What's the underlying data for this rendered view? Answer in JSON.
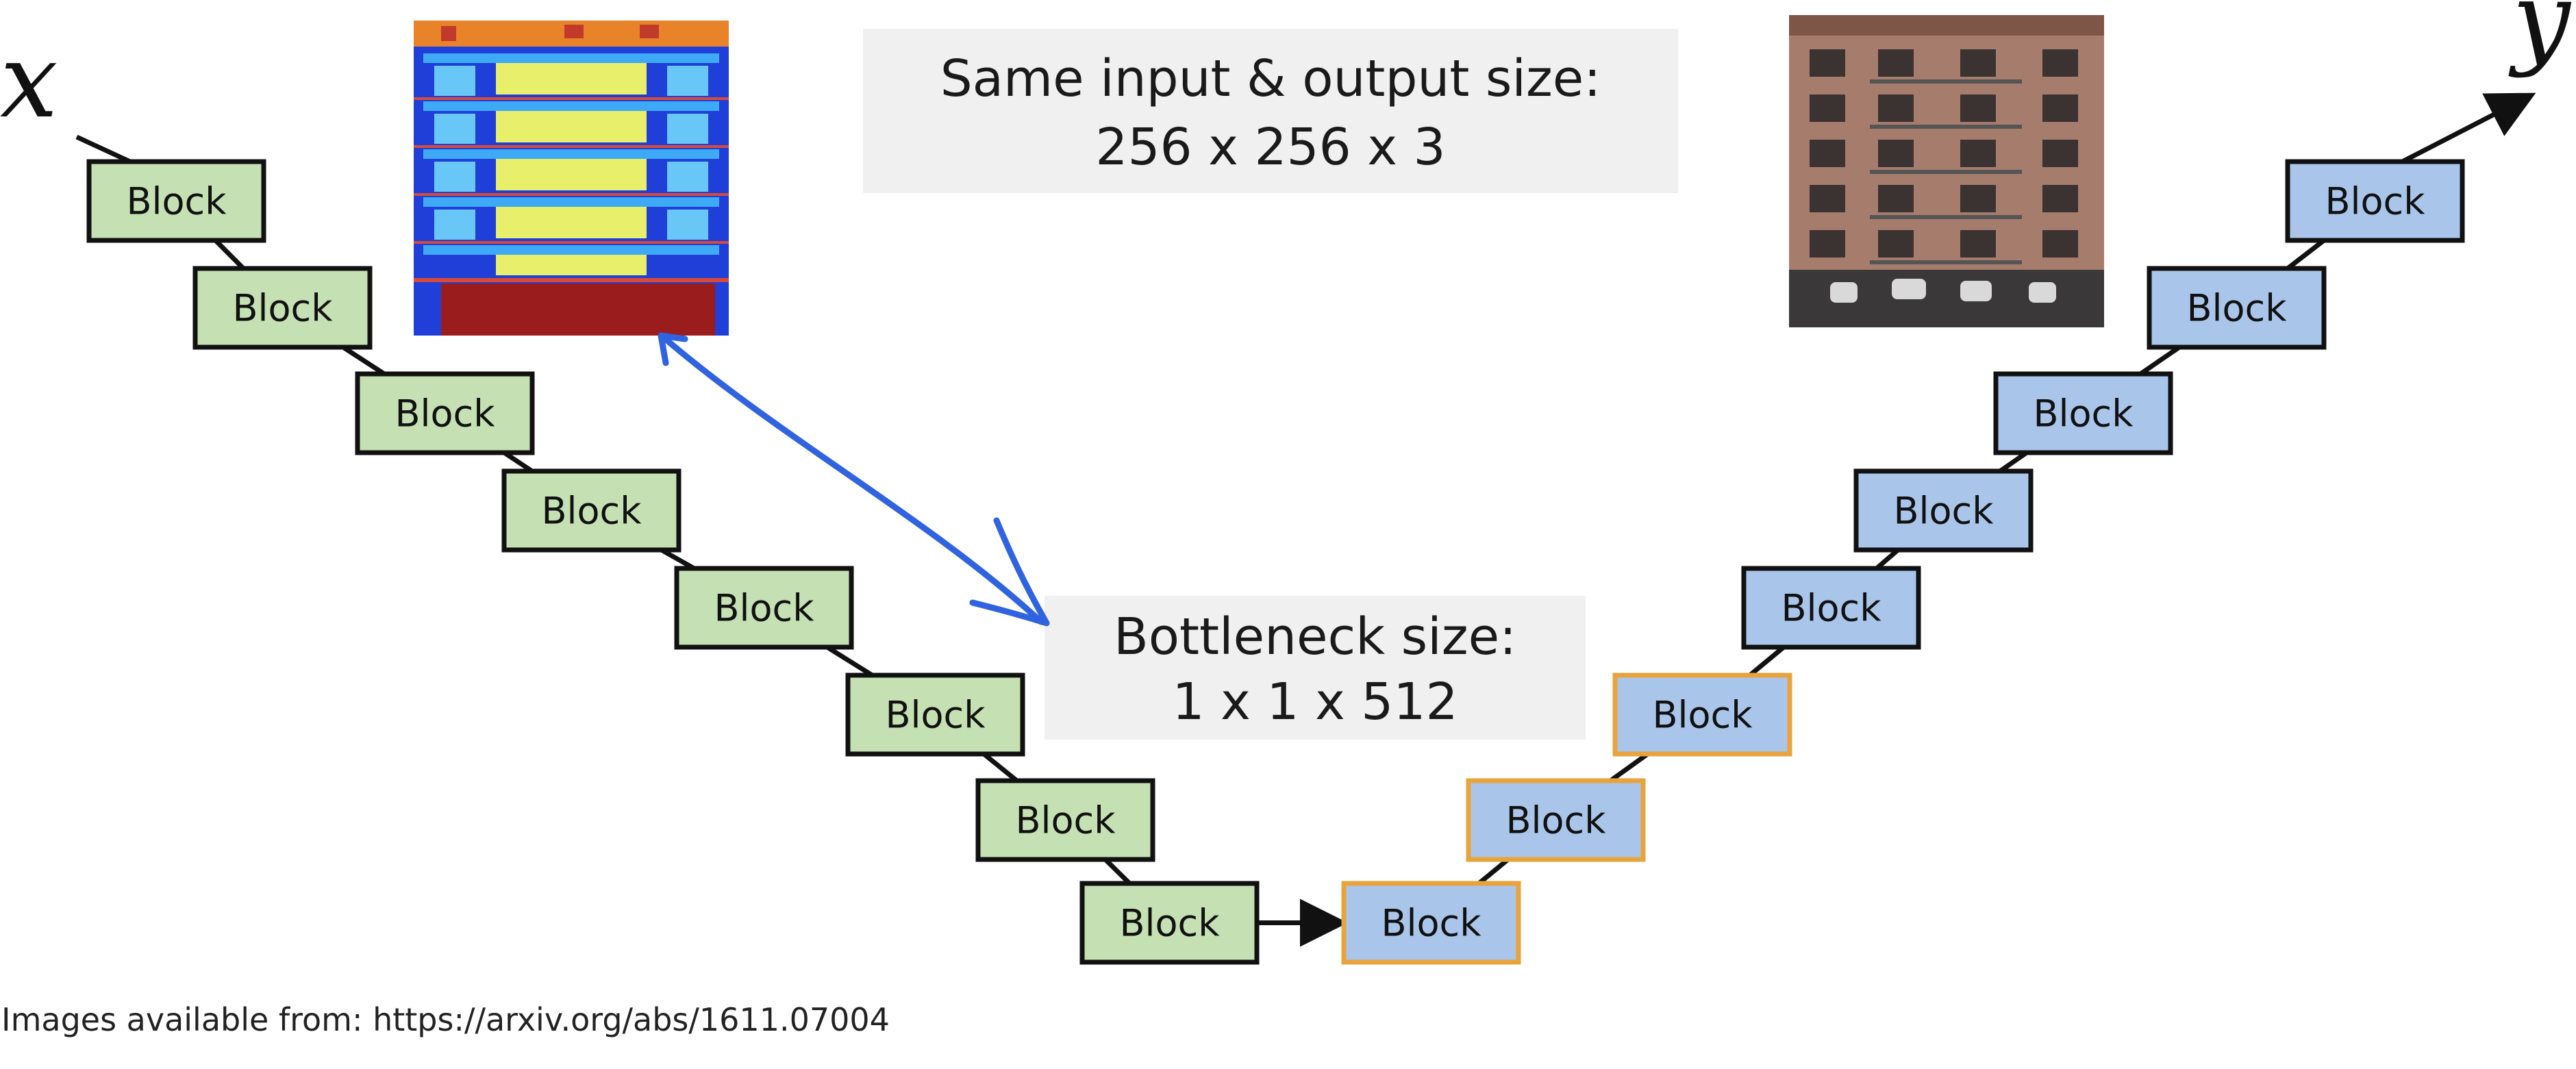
{
  "input_symbol": "x",
  "output_symbol": "y",
  "colors": {
    "encoder_fill": "#c5e0b3",
    "decoder_fill": "#a9c6ea",
    "block_stroke": "#111111",
    "highlight_stroke": "#e8a33d",
    "arrow_annotation": "#2f63e0"
  },
  "encoder_blocks": [
    {
      "label": "Block"
    },
    {
      "label": "Block"
    },
    {
      "label": "Block"
    },
    {
      "label": "Block"
    },
    {
      "label": "Block"
    },
    {
      "label": "Block"
    },
    {
      "label": "Block"
    },
    {
      "label": "Block"
    }
  ],
  "decoder_blocks": [
    {
      "label": "Block",
      "highlighted": true
    },
    {
      "label": "Block",
      "highlighted": true
    },
    {
      "label": "Block",
      "highlighted": true
    },
    {
      "label": "Block",
      "highlighted": false
    },
    {
      "label": "Block",
      "highlighted": false
    },
    {
      "label": "Block",
      "highlighted": false
    },
    {
      "label": "Block",
      "highlighted": false
    },
    {
      "label": "Block",
      "highlighted": false
    }
  ],
  "io_note": {
    "line1": "Same input & output size:",
    "line2": "256 x 256 x 3"
  },
  "bottleneck_note": {
    "line1": "Bottleneck size:",
    "line2": "1 x 1 x 512"
  },
  "images": {
    "input_image": "facade-label-map",
    "output_image": "building-facade-photo"
  },
  "caption": "Images available from: https://arxiv.org/abs/1611.07004"
}
